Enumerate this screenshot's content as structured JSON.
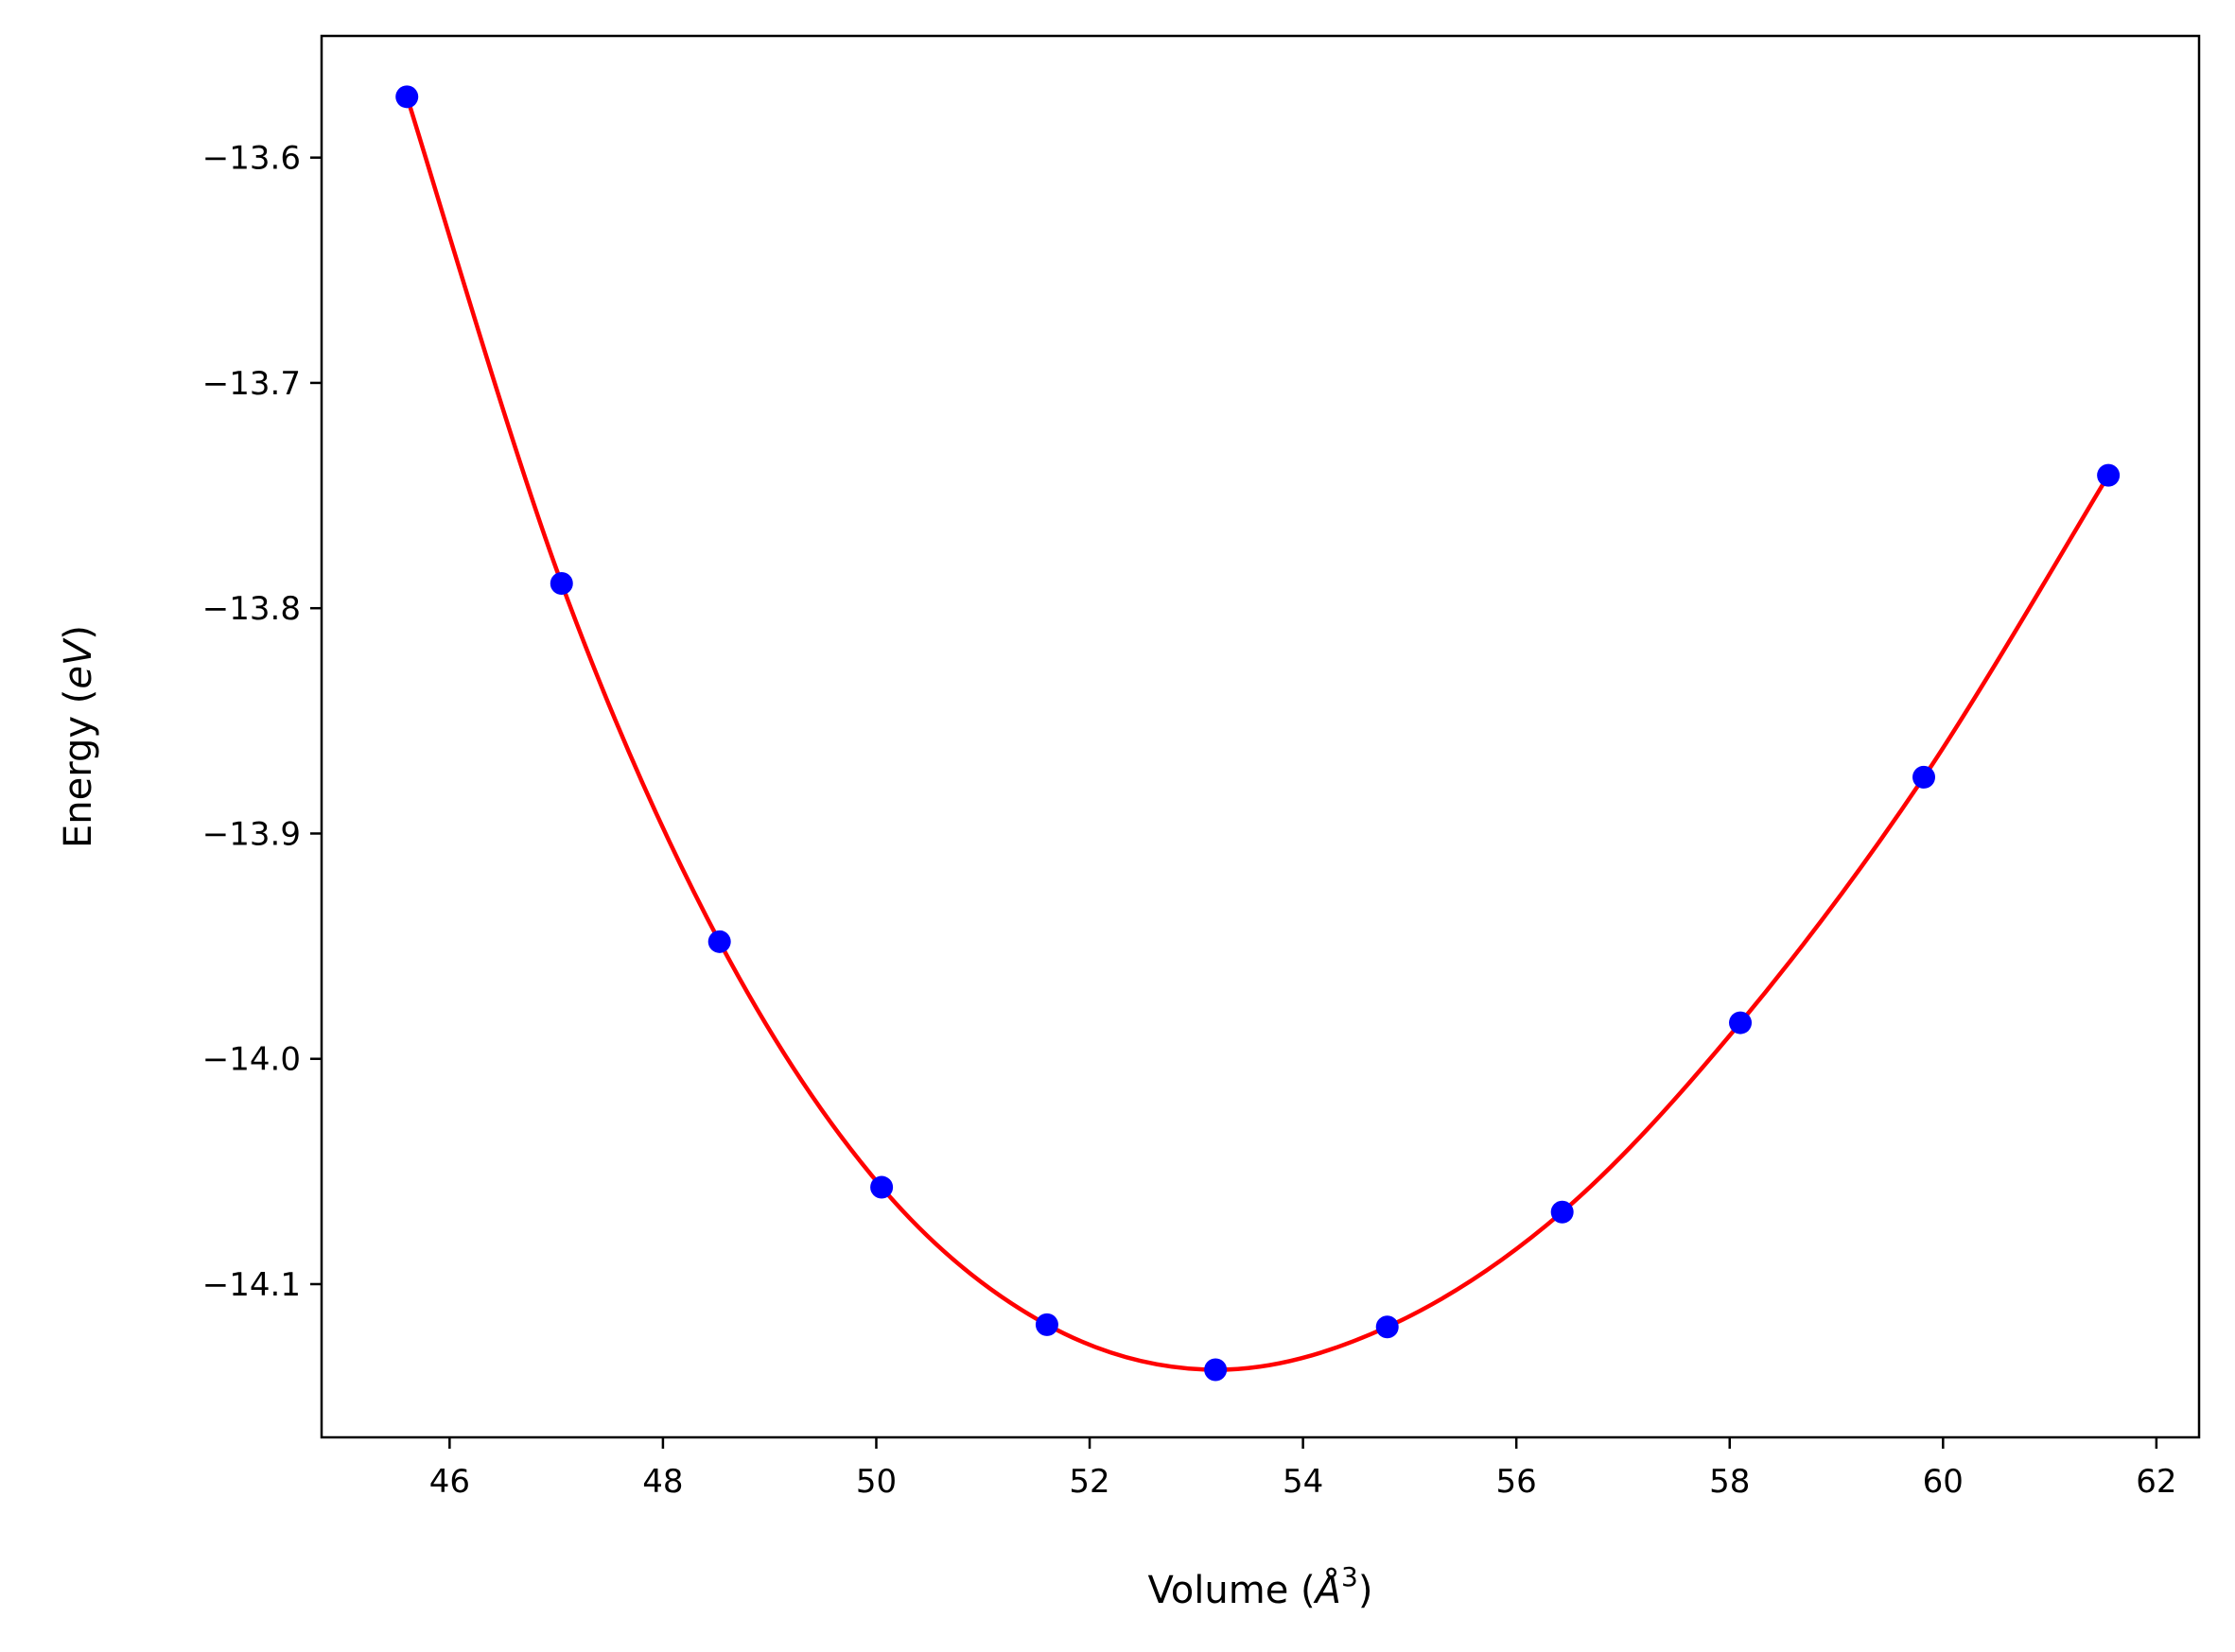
{
  "chart_data": {
    "type": "line",
    "xlabel": {
      "pre": "Volume (",
      "var": "Å",
      "sup": "3",
      "post": ")"
    },
    "ylabel": {
      "pre": "Energy (",
      "var": "eV",
      "post": ")"
    },
    "xlim": [
      44.8,
      62.4
    ],
    "ylim": [
      -14.168,
      -13.546
    ],
    "xticks": [
      46,
      48,
      50,
      52,
      54,
      56,
      58,
      60,
      62
    ],
    "yticks": [
      -13.6,
      -13.7,
      -13.8,
      -13.9,
      -14.0,
      -14.1
    ],
    "xtick_labels": [
      "46",
      "48",
      "50",
      "52",
      "54",
      "56",
      "58",
      "60",
      "62"
    ],
    "ytick_labels": [
      "−13.6",
      "−13.7",
      "−13.8",
      "−13.9",
      "−14.0",
      "−14.1"
    ],
    "grid": false,
    "series": [
      {
        "kind": "points",
        "color": "#0000ff",
        "x": [
          45.6,
          47.05,
          48.53,
          50.05,
          51.6,
          53.18,
          54.79,
          56.43,
          58.1,
          59.82,
          61.55
        ],
        "y": [
          -13.573,
          -13.789,
          -13.948,
          -14.057,
          -14.118,
          -14.138,
          -14.119,
          -14.068,
          -13.984,
          -13.875,
          -13.741
        ]
      },
      {
        "kind": "fit-curve",
        "color": "#ff0000",
        "x": [
          45.6,
          47.05,
          48.53,
          50.05,
          51.6,
          53.18,
          54.79,
          56.43,
          58.1,
          59.82,
          61.55
        ],
        "y": [
          -13.573,
          -13.789,
          -13.948,
          -14.057,
          -14.118,
          -14.138,
          -14.119,
          -14.068,
          -13.984,
          -13.875,
          -13.741
        ]
      }
    ]
  }
}
